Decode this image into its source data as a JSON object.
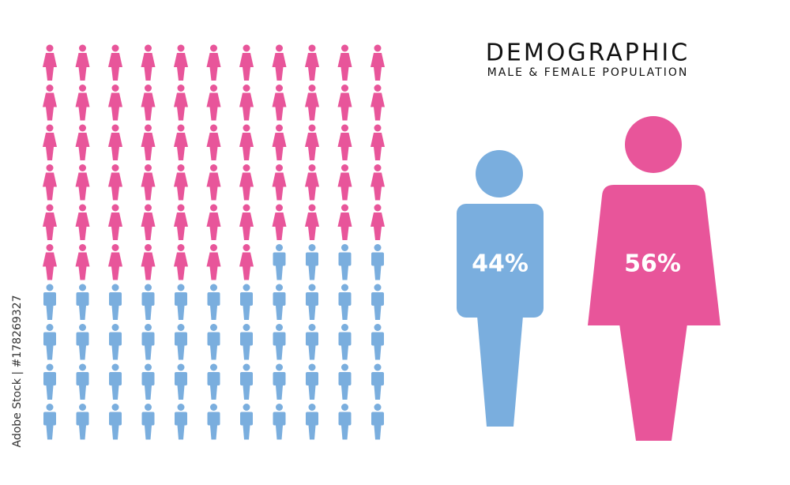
{
  "chart_data": {
    "type": "pictograph",
    "title": "DEMOGRAPHIC",
    "subtitle": "MALE & FEMALE POPULATION",
    "values": [
      44,
      56
    ],
    "value_labels": [
      "44%",
      "56%"
    ],
    "colors": [
      "#7aaede",
      "#e8559a"
    ],
    "credit": "Adobe Stock | #178269327"
  }
}
